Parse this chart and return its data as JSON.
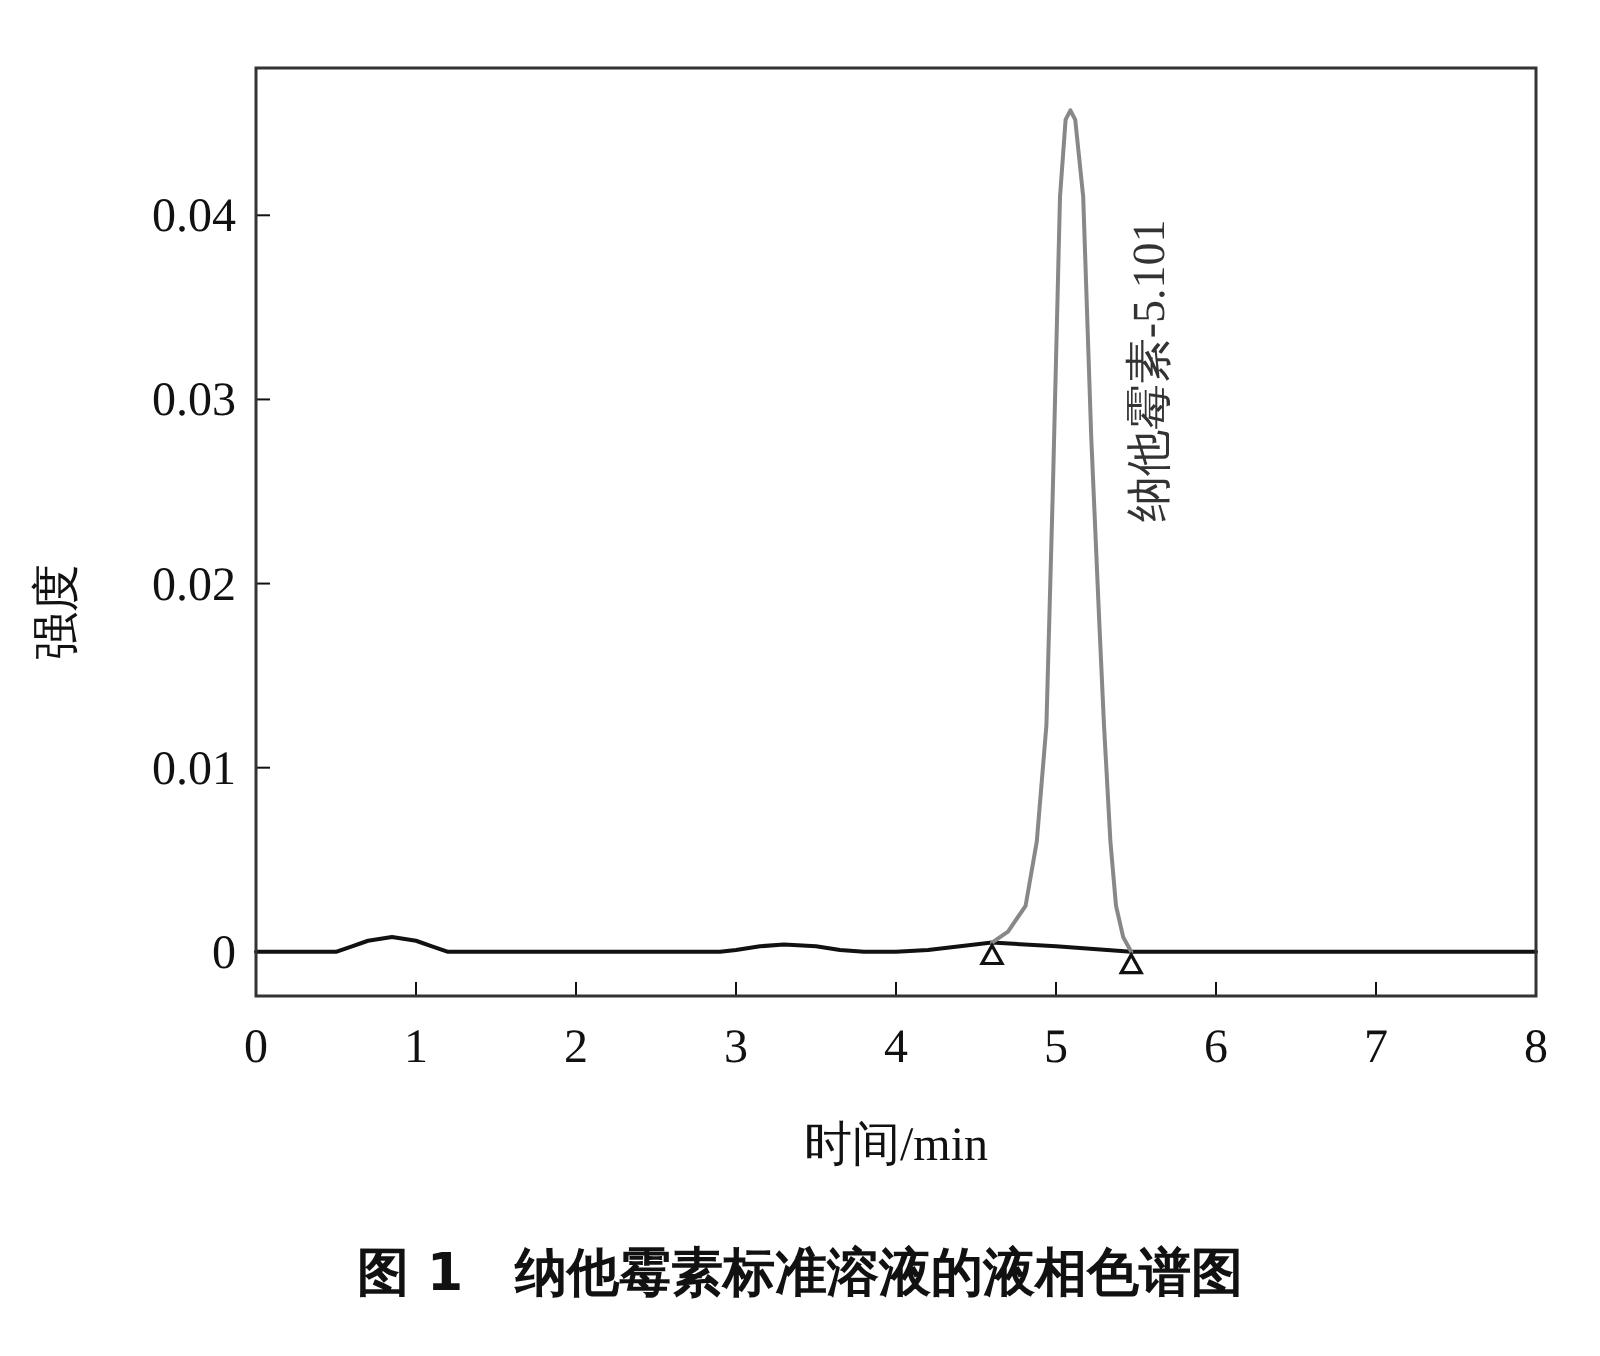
{
  "chart_data": {
    "type": "line",
    "title": "图 1　纳他霉素标准溶液的液相色谱图",
    "xlabel": "时间/min",
    "ylabel": "强度",
    "xlim": [
      0,
      8
    ],
    "ylim": [
      -0.0024,
      0.048
    ],
    "xticks": [
      0,
      1,
      2,
      3,
      4,
      5,
      6,
      7,
      8
    ],
    "yticks": [
      0,
      0.01,
      0.02,
      0.03,
      0.04
    ],
    "grid": false,
    "series": [
      {
        "color": "#111111",
        "x": [
          0,
          0.5,
          0.6,
          0.7,
          0.85,
          1.0,
          1.1,
          1.2,
          2.9,
          3.0,
          3.15,
          3.3,
          3.5,
          3.65,
          3.8,
          4.0,
          4.2,
          4.4,
          4.6,
          5.0,
          5.47,
          6,
          8
        ],
        "values": [
          0,
          0,
          0.0003,
          0.0006,
          0.0008,
          0.0006,
          0.0003,
          0,
          0,
          0.0001,
          0.0003,
          0.0004,
          0.0003,
          0.0001,
          0,
          0,
          0.0001,
          0.0003,
          0.0005,
          0.0003,
          0,
          0,
          0
        ]
      },
      {
        "color": "#888888",
        "x": [
          4.6,
          4.7,
          4.81,
          4.88,
          4.94,
          4.98,
          5.025,
          5.06,
          5.09,
          5.12,
          5.17,
          5.22,
          5.27,
          5.3,
          5.34,
          5.375,
          5.42,
          5.47
        ],
        "values": [
          0.0005,
          0.0011,
          0.0025,
          0.006,
          0.0123,
          0.025,
          0.041,
          0.0452,
          0.0457,
          0.0452,
          0.041,
          0.028,
          0.018,
          0.0123,
          0.006,
          0.0025,
          0.0008,
          0
        ]
      },
      {
        "type": "scatter",
        "marker": "triangle",
        "color": "#111111",
        "x": [
          4.6,
          5.47
        ],
        "values": [
          -0.0002,
          -0.0007
        ]
      }
    ],
    "annotations": [
      {
        "text": "纳他霉素-5.101",
        "x": 5.1,
        "y": 0.0457
      }
    ]
  }
}
